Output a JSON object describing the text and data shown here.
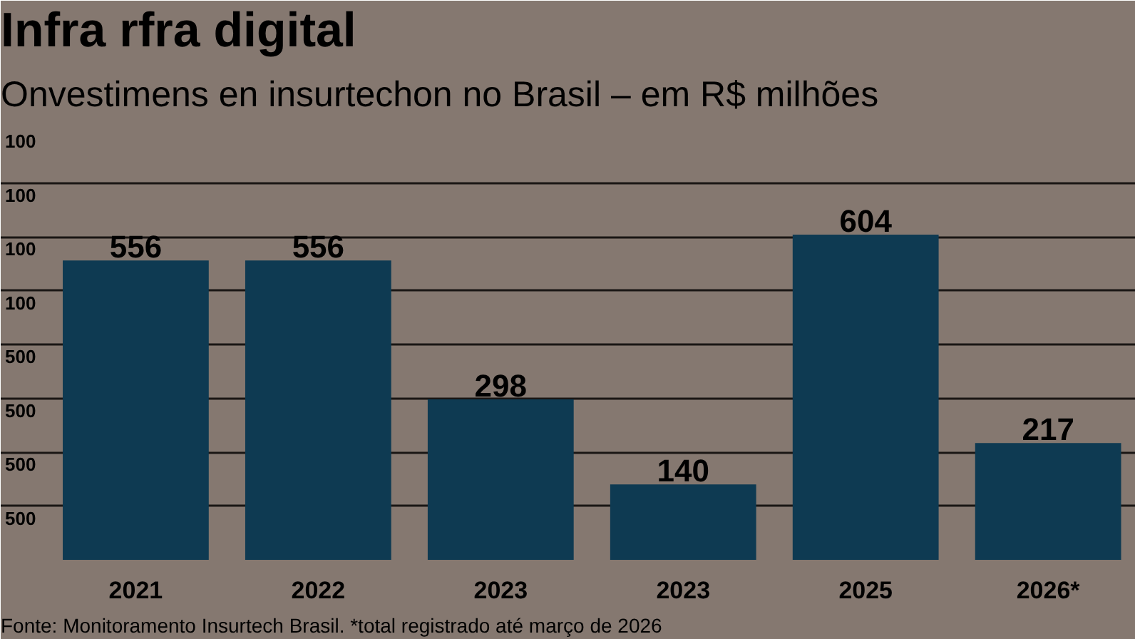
{
  "chart_data": {
    "type": "bar",
    "title": "Infra rfra digital",
    "subtitle": "Onvestimens en insurtechon no Brasil – em R$ milhões",
    "categories": [
      "2021",
      "2022",
      "2023",
      "2023",
      "2025",
      "2026*"
    ],
    "values": [
      556,
      556,
      298,
      140,
      604,
      217
    ],
    "color": "#0e3a52",
    "ylim": [
      0,
      800
    ],
    "yticks": [
      {
        "value": 800,
        "label": null
      },
      {
        "value": 700,
        "label": null
      },
      {
        "value": 600,
        "label": null
      },
      {
        "value": 500,
        "label": null
      },
      {
        "value": 400,
        "label": null
      },
      {
        "value": 300,
        "label": null
      },
      {
        "value": 200,
        "label": null
      },
      {
        "value": 100,
        "label": null
      }
    ],
    "tick_labels": "x",
    "grid": "y",
    "data_labels": true,
    "annotations": [
      "100",
      "100",
      "100",
      "100",
      "500",
      "500",
      "500",
      "500",
      "Fonte: Monitoramento Insurtech Brasil. *total registrado até março de 2026"
    ]
  }
}
